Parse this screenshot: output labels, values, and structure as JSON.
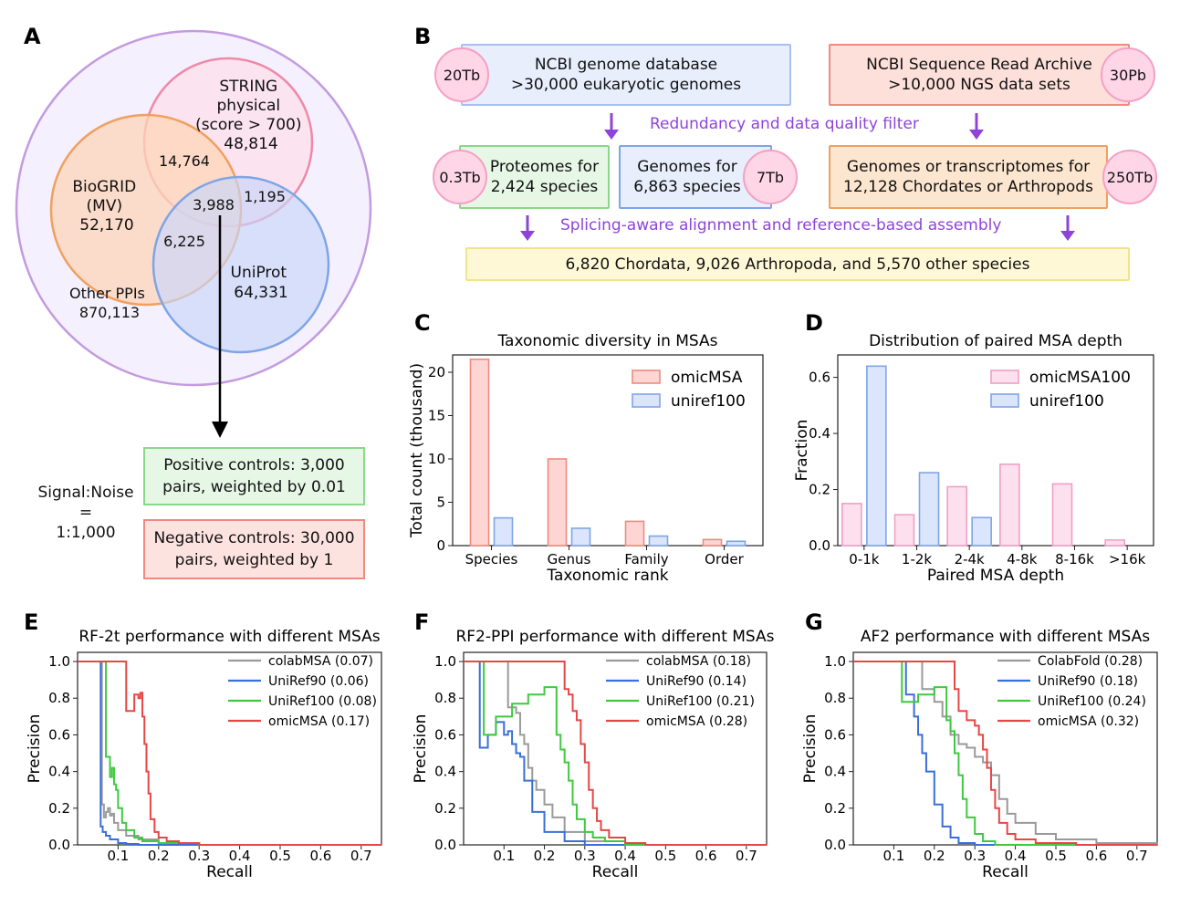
{
  "colors": {
    "string": "#ee8aa8",
    "biogrid": "#f0a060",
    "uniprot": "#7fa5e6",
    "outer": "#c39be0",
    "red": "#e84646",
    "blue": "#3a6fd8",
    "green": "#3fc93f",
    "gray": "#9a9a9a",
    "purple": "#8e44d9",
    "pink": "#ef9fc5"
  },
  "panel_a": {
    "label": "A",
    "string_label": [
      "STRING",
      "physical",
      "(score > 700)",
      "48,814"
    ],
    "biogrid_label": [
      "BioGRID",
      "(MV)",
      "52,170"
    ],
    "uniprot_label": [
      "UniProt",
      "64,331"
    ],
    "other_label": [
      "Other PPIs",
      "870,113"
    ],
    "overlap_sb": "14,764",
    "overlap_all": "3,988",
    "overlap_su": "1,195",
    "overlap_bu": "6,225",
    "signal_noise": "Signal:Noise\n=\n1:1,000",
    "positive": "Positive controls: 3,000\npairs, weighted by 0.01",
    "negative": "Negative controls: 30,000\npairs, weighted by 1"
  },
  "panel_b": {
    "label": "B",
    "ncbi_genome": "NCBI genome database\n>30,000 eukaryotic genomes",
    "ncbi_genome_size": "20Tb",
    "sra": "NCBI Sequence Read Archive\n>10,000 NGS data sets",
    "sra_size": "30Pb",
    "filter_step": "Redundancy and data quality filter",
    "proteomes": "Proteomes for\n2,424 species",
    "proteomes_size": "0.3Tb",
    "genomes": "Genomes for\n6,863 species",
    "genomes_size": "7Tb",
    "transcriptomes": "Genomes or transcriptomes for\n12,128 Chordates or Arthropods",
    "transcriptomes_size": "250Tb",
    "assembly_step": "Splicing-aware alignment and reference-based assembly",
    "result": "6,820 Chordata, 9,026 Arthropoda, and 5,570 other species"
  },
  "chart_data": [
    {
      "panel": "C",
      "type": "bar",
      "title": "Taxonomic diversity in MSAs",
      "xlabel": "Taxonomic rank",
      "ylabel": "Total count (thousand)",
      "categories": [
        "Species",
        "Genus",
        "Family",
        "Order"
      ],
      "series": [
        {
          "name": "omicMSA",
          "values": [
            21.5,
            10.0,
            2.8,
            0.7
          ]
        },
        {
          "name": "uniref100",
          "values": [
            3.2,
            2.0,
            1.1,
            0.5
          ]
        }
      ],
      "ylim": [
        0,
        22
      ],
      "yticks": [
        "0",
        "5",
        "10",
        "15",
        "20"
      ],
      "ytick_values": [
        0,
        5,
        10,
        15,
        20
      ],
      "legend": "top-right"
    },
    {
      "panel": "D",
      "type": "bar",
      "title": "Distribution of paired MSA depth",
      "xlabel": "Paired MSA depth",
      "ylabel": "Fraction",
      "categories": [
        "0-1k",
        "1-2k",
        "2-4k",
        "4-8k",
        "8-16k",
        ">16k"
      ],
      "series": [
        {
          "name": "omicMSA100",
          "values": [
            0.15,
            0.11,
            0.21,
            0.29,
            0.22,
            0.02
          ]
        },
        {
          "name": "uniref100",
          "values": [
            0.64,
            0.26,
            0.1,
            0.0,
            0.0,
            0.0
          ]
        }
      ],
      "ylim": [
        0,
        0.68
      ],
      "yticks": [
        "0.0",
        "0.2",
        "0.4",
        "0.6"
      ],
      "ytick_values": [
        0,
        0.2,
        0.4,
        0.6
      ],
      "legend": "top-right"
    },
    {
      "panel": "E",
      "type": "line",
      "title": "RF-2t performance with different MSAs",
      "xlabel": "Recall",
      "ylabel": "Precision",
      "xlim": [
        0.0,
        0.75
      ],
      "ylim": [
        0,
        1.05
      ],
      "xticks": [
        "0.1",
        "0.2",
        "0.3",
        "0.4",
        "0.5",
        "0.6",
        "0.7"
      ],
      "xtick_values": [
        0.1,
        0.2,
        0.3,
        0.4,
        0.5,
        0.6,
        0.7
      ],
      "yticks": [
        "0.0",
        "0.2",
        "0.4",
        "0.6",
        "0.8",
        "1.0"
      ],
      "ytick_values": [
        0,
        0.2,
        0.4,
        0.6,
        0.8,
        1.0
      ],
      "series": [
        {
          "name": "colabMSA (0.07)",
          "color": "gray",
          "x": [
            0,
            0.06,
            0.06,
            0.065,
            0.07,
            0.075,
            0.08,
            0.085,
            0.09,
            0.1,
            0.12,
            0.15,
            0.2,
            0.3,
            0.75
          ],
          "y": [
            1.0,
            1.0,
            0.22,
            0.15,
            0.18,
            0.2,
            0.16,
            0.17,
            0.12,
            0.08,
            0.05,
            0.03,
            0.01,
            0.0,
            0.0
          ]
        },
        {
          "name": "UniRef90 (0.06)",
          "color": "blue",
          "x": [
            0,
            0.057,
            0.057,
            0.062,
            0.07,
            0.08,
            0.1,
            0.12,
            0.15,
            0.75
          ],
          "y": [
            1.0,
            1.0,
            0.1,
            0.07,
            0.05,
            0.03,
            0.01,
            0.005,
            0.0,
            0.0
          ]
        },
        {
          "name": "UniRef100 (0.08)",
          "color": "green",
          "x": [
            0,
            0.07,
            0.07,
            0.08,
            0.08,
            0.085,
            0.09,
            0.095,
            0.1,
            0.11,
            0.12,
            0.14,
            0.16,
            0.2,
            0.3,
            0.75
          ],
          "y": [
            1.0,
            1.0,
            0.48,
            0.43,
            0.37,
            0.42,
            0.33,
            0.3,
            0.2,
            0.12,
            0.08,
            0.04,
            0.02,
            0.01,
            0.0,
            0.0
          ]
        },
        {
          "name": "omicMSA (0.17)",
          "color": "red",
          "x": [
            0,
            0.12,
            0.12,
            0.14,
            0.15,
            0.155,
            0.16,
            0.165,
            0.17,
            0.175,
            0.18,
            0.19,
            0.2,
            0.22,
            0.25,
            0.3,
            0.75
          ],
          "y": [
            1.0,
            1.0,
            0.73,
            0.82,
            0.8,
            0.83,
            0.7,
            0.55,
            0.4,
            0.28,
            0.14,
            0.07,
            0.04,
            0.02,
            0.01,
            0.0,
            0.0
          ]
        }
      ],
      "legend": "top-right"
    },
    {
      "panel": "F",
      "type": "line",
      "title": "RF2-PPI performance with different MSAs",
      "xlabel": "Recall",
      "ylabel": "Precision",
      "xlim": [
        0.0,
        0.75
      ],
      "ylim": [
        0,
        1.05
      ],
      "xticks": [
        "0.1",
        "0.2",
        "0.3",
        "0.4",
        "0.5",
        "0.6",
        "0.7"
      ],
      "xtick_values": [
        0.1,
        0.2,
        0.3,
        0.4,
        0.5,
        0.6,
        0.7
      ],
      "yticks": [
        "0.0",
        "0.2",
        "0.4",
        "0.6",
        "0.8",
        "1.0"
      ],
      "ytick_values": [
        0,
        0.2,
        0.4,
        0.6,
        0.8,
        1.0
      ],
      "series": [
        {
          "name": "colabMSA (0.18)",
          "color": "gray",
          "x": [
            0,
            0.11,
            0.11,
            0.13,
            0.14,
            0.15,
            0.16,
            0.17,
            0.18,
            0.2,
            0.22,
            0.25,
            0.3,
            0.4,
            0.75
          ],
          "y": [
            1.0,
            1.0,
            0.75,
            0.72,
            0.6,
            0.55,
            0.42,
            0.35,
            0.3,
            0.22,
            0.15,
            0.07,
            0.02,
            0.0,
            0.0
          ]
        },
        {
          "name": "UniRef90 (0.14)",
          "color": "blue",
          "x": [
            0,
            0.04,
            0.04,
            0.06,
            0.08,
            0.1,
            0.11,
            0.12,
            0.13,
            0.14,
            0.15,
            0.17,
            0.2,
            0.25,
            0.3,
            0.75
          ],
          "y": [
            1.0,
            1.0,
            0.53,
            0.6,
            0.67,
            0.6,
            0.62,
            0.55,
            0.5,
            0.48,
            0.35,
            0.18,
            0.07,
            0.02,
            0.0,
            0.0
          ]
        },
        {
          "name": "UniRef100 (0.21)",
          "color": "green",
          "x": [
            0,
            0.05,
            0.05,
            0.08,
            0.12,
            0.16,
            0.2,
            0.23,
            0.23,
            0.24,
            0.25,
            0.26,
            0.27,
            0.28,
            0.3,
            0.32,
            0.35,
            0.4,
            0.75
          ],
          "y": [
            1.0,
            1.0,
            0.6,
            0.7,
            0.77,
            0.82,
            0.86,
            0.86,
            0.6,
            0.52,
            0.45,
            0.35,
            0.22,
            0.14,
            0.07,
            0.04,
            0.02,
            0.0,
            0.0
          ]
        },
        {
          "name": "omicMSA (0.28)",
          "color": "red",
          "x": [
            0,
            0.25,
            0.25,
            0.26,
            0.27,
            0.28,
            0.29,
            0.3,
            0.31,
            0.32,
            0.33,
            0.34,
            0.36,
            0.4,
            0.45,
            0.75
          ],
          "y": [
            1.0,
            1.0,
            0.85,
            0.82,
            0.73,
            0.68,
            0.55,
            0.45,
            0.3,
            0.2,
            0.13,
            0.08,
            0.04,
            0.01,
            0.0,
            0.0
          ]
        }
      ],
      "legend": "top-right"
    },
    {
      "panel": "G",
      "type": "line",
      "title": "AF2 performance with different MSAs",
      "xlabel": "Recall",
      "ylabel": "Precision",
      "xlim": [
        0.0,
        0.75
      ],
      "ylim": [
        0,
        1.05
      ],
      "xticks": [
        "0.1",
        "0.2",
        "0.3",
        "0.4",
        "0.5",
        "0.6",
        "0.7"
      ],
      "xtick_values": [
        0.1,
        0.2,
        0.3,
        0.4,
        0.5,
        0.6,
        0.7
      ],
      "yticks": [
        "0.0",
        "0.2",
        "0.4",
        "0.6",
        "0.8",
        "1.0"
      ],
      "ytick_values": [
        0,
        0.2,
        0.4,
        0.6,
        0.8,
        1.0
      ],
      "series": [
        {
          "name": "ColabFold (0.28)",
          "color": "gray",
          "x": [
            0,
            0.17,
            0.17,
            0.2,
            0.22,
            0.24,
            0.26,
            0.28,
            0.3,
            0.32,
            0.34,
            0.36,
            0.38,
            0.4,
            0.45,
            0.5,
            0.6,
            0.75
          ],
          "y": [
            1.0,
            1.0,
            0.85,
            0.78,
            0.7,
            0.6,
            0.55,
            0.53,
            0.48,
            0.45,
            0.38,
            0.25,
            0.17,
            0.12,
            0.06,
            0.03,
            0.01,
            0.0
          ]
        },
        {
          "name": "UniRef90 (0.18)",
          "color": "blue",
          "x": [
            0,
            0.13,
            0.13,
            0.15,
            0.16,
            0.17,
            0.18,
            0.2,
            0.22,
            0.24,
            0.26,
            0.3,
            0.75
          ],
          "y": [
            1.0,
            1.0,
            0.82,
            0.7,
            0.6,
            0.5,
            0.4,
            0.22,
            0.1,
            0.04,
            0.01,
            0.0,
            0.0
          ]
        },
        {
          "name": "UniRef100 (0.24)",
          "color": "green",
          "x": [
            0,
            0.12,
            0.12,
            0.16,
            0.2,
            0.23,
            0.23,
            0.24,
            0.25,
            0.26,
            0.27,
            0.28,
            0.3,
            0.32,
            0.35,
            0.75
          ],
          "y": [
            1.0,
            1.0,
            0.78,
            0.82,
            0.86,
            0.84,
            0.68,
            0.62,
            0.5,
            0.38,
            0.25,
            0.15,
            0.06,
            0.02,
            0.0,
            0.0
          ]
        },
        {
          "name": "omicMSA (0.32)",
          "color": "red",
          "x": [
            0,
            0.25,
            0.25,
            0.26,
            0.28,
            0.3,
            0.31,
            0.32,
            0.33,
            0.34,
            0.35,
            0.36,
            0.38,
            0.4,
            0.45,
            0.55,
            0.75
          ],
          "y": [
            1.0,
            1.0,
            0.85,
            0.73,
            0.68,
            0.65,
            0.6,
            0.52,
            0.42,
            0.3,
            0.2,
            0.12,
            0.06,
            0.03,
            0.01,
            0.0,
            0.0
          ]
        }
      ],
      "legend": "top-right"
    }
  ]
}
